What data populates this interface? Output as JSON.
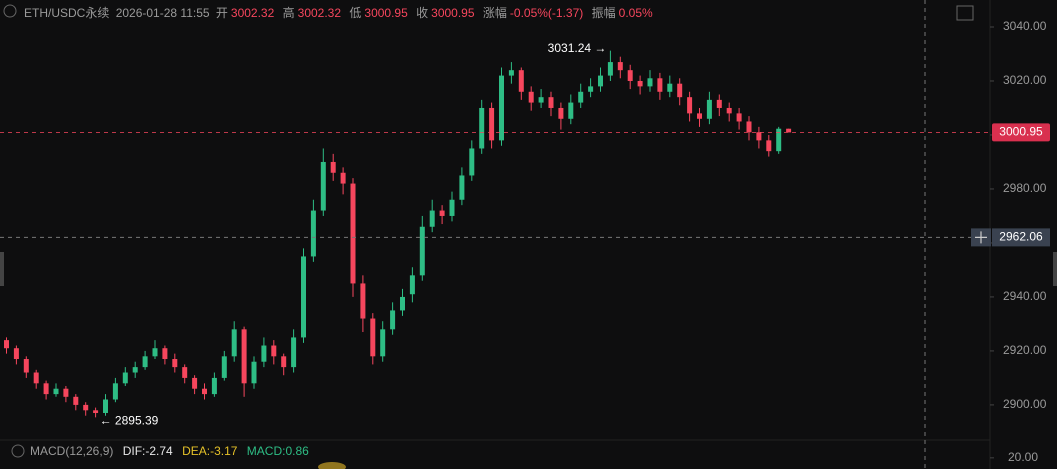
{
  "chart_data": {
    "type": "candlestick",
    "header": {
      "symbol": "ETH/USDC永续",
      "time": "2026-01-28 11:55",
      "open_label": "开",
      "open": "3002.32",
      "high_label": "高",
      "high": "3002.32",
      "low_label": "低",
      "low": "3000.95",
      "close_label": "收",
      "close": "3000.95",
      "change_label": "涨幅",
      "change": "-0.05%(-1.37)",
      "amplitude_label": "振幅",
      "amplitude": "0.05%"
    },
    "candles": [
      [
        2924,
        2925,
        2919,
        2921
      ],
      [
        2921,
        2922,
        2915,
        2917
      ],
      [
        2917,
        2918,
        2910,
        2912
      ],
      [
        2912,
        2913,
        2906,
        2908
      ],
      [
        2908,
        2909,
        2902,
        2904
      ],
      [
        2904,
        2908,
        2903,
        2906
      ],
      [
        2906,
        2907,
        2901,
        2903
      ],
      [
        2903,
        2904,
        2898,
        2900
      ],
      [
        2900,
        2901,
        2896,
        2898
      ],
      [
        2898,
        2899,
        2895.39,
        2897
      ],
      [
        2897,
        2904,
        2896,
        2902
      ],
      [
        2902,
        2910,
        2901,
        2908
      ],
      [
        2908,
        2914,
        2907,
        2912
      ],
      [
        2912,
        2916,
        2910,
        2914
      ],
      [
        2914,
        2920,
        2913,
        2918
      ],
      [
        2918,
        2924,
        2917,
        2921
      ],
      [
        2921,
        2922,
        2915,
        2917
      ],
      [
        2917,
        2919,
        2912,
        2914
      ],
      [
        2914,
        2915,
        2908,
        2910
      ],
      [
        2910,
        2911,
        2904,
        2906
      ],
      [
        2906,
        2908,
        2902,
        2904
      ],
      [
        2904,
        2912,
        2903,
        2910
      ],
      [
        2910,
        2920,
        2909,
        2918
      ],
      [
        2918,
        2931,
        2916,
        2928
      ],
      [
        2928,
        2929,
        2903,
        2908
      ],
      [
        2908,
        2918,
        2906,
        2916
      ],
      [
        2916,
        2925,
        2914,
        2922
      ],
      [
        2922,
        2924,
        2915,
        2918
      ],
      [
        2918,
        2919,
        2911,
        2914
      ],
      [
        2914,
        2928,
        2912,
        2925
      ],
      [
        2925,
        2958,
        2923,
        2955
      ],
      [
        2955,
        2976,
        2953,
        2972
      ],
      [
        2972,
        2995,
        2970,
        2990
      ],
      [
        2990,
        2993,
        2983,
        2986
      ],
      [
        2986,
        2988,
        2978,
        2982
      ],
      [
        2982,
        2984,
        2940,
        2945
      ],
      [
        2945,
        2948,
        2927,
        2932
      ],
      [
        2932,
        2934,
        2915,
        2918
      ],
      [
        2918,
        2931,
        2916,
        2928
      ],
      [
        2928,
        2938,
        2926,
        2935
      ],
      [
        2935,
        2943,
        2933,
        2940
      ],
      [
        2941,
        2951,
        2938,
        2948
      ],
      [
        2948,
        2970,
        2946,
        2966
      ],
      [
        2966,
        2976,
        2964,
        2972
      ],
      [
        2972,
        2974,
        2967,
        2970
      ],
      [
        2970,
        2979,
        2968,
        2976
      ],
      [
        2976,
        2988,
        2974,
        2985
      ],
      [
        2985,
        2998,
        2983,
        2995
      ],
      [
        2995,
        3013,
        2993,
        3010
      ],
      [
        3010,
        3012,
        2995,
        2998
      ],
      [
        2998,
        3025,
        2996,
        3022
      ],
      [
        3022,
        3027,
        3019,
        3024
      ],
      [
        3024,
        3025,
        3013,
        3016
      ],
      [
        3016,
        3018,
        3009,
        3012
      ],
      [
        3012,
        3017,
        3010,
        3014
      ],
      [
        3014,
        3016,
        3007,
        3010
      ],
      [
        3010,
        3012,
        3002,
        3006
      ],
      [
        3006,
        3015,
        3004,
        3012
      ],
      [
        3012,
        3019,
        3010,
        3016
      ],
      [
        3016,
        3021,
        3014,
        3018
      ],
      [
        3018,
        3025,
        3016,
        3022
      ],
      [
        3022,
        3031.24,
        3020,
        3027
      ],
      [
        3027,
        3029,
        3021,
        3024
      ],
      [
        3024,
        3026,
        3017,
        3020
      ],
      [
        3020,
        3022,
        3015,
        3018
      ],
      [
        3018,
        3024,
        3016,
        3021
      ],
      [
        3021,
        3023,
        3013,
        3016
      ],
      [
        3016,
        3022,
        3014,
        3019
      ],
      [
        3019,
        3021,
        3011,
        3014
      ],
      [
        3014,
        3016,
        3005,
        3008
      ],
      [
        3008,
        3010,
        3003,
        3006
      ],
      [
        3006,
        3016,
        3004,
        3013
      ],
      [
        3013,
        3015,
        3007,
        3010
      ],
      [
        3010,
        3012,
        3005,
        3008
      ],
      [
        3008,
        3010,
        3002,
        3005
      ],
      [
        3005,
        3007,
        2998,
        3001
      ],
      [
        3001,
        3003,
        2995,
        2998
      ],
      [
        2998,
        3000,
        2992,
        2994
      ],
      [
        2994,
        3003,
        2993,
        3002.32
      ],
      [
        3002.32,
        3002.32,
        3000.95,
        3000.95
      ]
    ],
    "up_color": "#2ebd85",
    "down_color": "#f6465d",
    "ylim": [
      2887,
      3050
    ],
    "yticks": [
      {
        "value": 2900,
        "label": "2900.00"
      },
      {
        "value": 2920,
        "label": "2920.00"
      },
      {
        "value": 2940,
        "label": "2940.00"
      },
      {
        "value": 2960,
        "label": "2960.00"
      },
      {
        "value": 2980,
        "label": "2980.00"
      },
      {
        "value": 3000,
        "label": "3000.00"
      },
      {
        "value": 3020,
        "label": "3020.00"
      },
      {
        "value": 3040,
        "label": "3040.00"
      }
    ],
    "last_price": 3000.95,
    "crosshair_price": 2962.06,
    "annotations": [
      {
        "text": "3031.24 →",
        "index": 61,
        "value": 3031.24,
        "side": "left"
      },
      {
        "text": "← 2895.39",
        "index": 9,
        "value": 2895.39,
        "side": "right"
      }
    ],
    "macd": {
      "title": "MACD(12,26,9)",
      "dif": "DIF:-2.74",
      "dea": "DEA:-3.17",
      "macd": "MACD:0.86",
      "ylim": [
        -5,
        60
      ],
      "yticks": [
        {
          "value": 20,
          "label": "20.00"
        }
      ]
    }
  }
}
